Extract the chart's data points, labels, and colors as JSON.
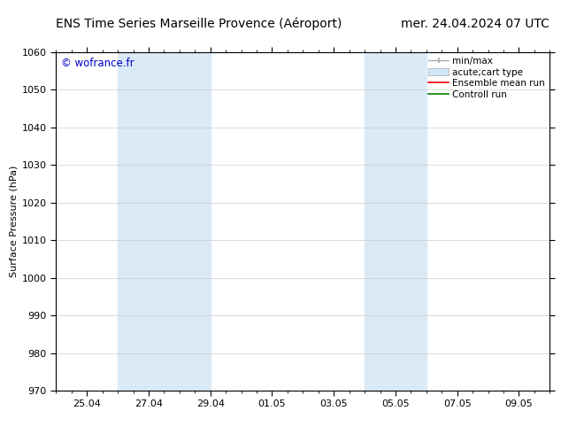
{
  "title_left": "ENS Time Series Marseille Provence (Aéroport)",
  "title_right": "mer. 24.04.2024 07 UTC",
  "ylabel": "Surface Pressure (hPa)",
  "ylim": [
    970,
    1060
  ],
  "yticks": [
    970,
    980,
    990,
    1000,
    1010,
    1020,
    1030,
    1040,
    1050,
    1060
  ],
  "xtick_labels": [
    "25.04",
    "27.04",
    "29.04",
    "01.05",
    "03.05",
    "05.05",
    "07.05",
    "09.05"
  ],
  "xtick_positions": [
    1.0,
    3.0,
    5.0,
    7.0,
    9.0,
    11.0,
    13.0,
    15.0
  ],
  "xlim": [
    0,
    16
  ],
  "watermark": "© wofrance.fr",
  "watermark_color": "#0000cc",
  "background_color": "#ffffff",
  "plot_bg_color": "#ffffff",
  "shaded_bands": [
    {
      "x_start": 2.0,
      "x_end": 5.0,
      "color": "#daeaf7"
    },
    {
      "x_start": 10.0,
      "x_end": 12.0,
      "color": "#daeaf7"
    }
  ],
  "grid_color": "#cccccc",
  "title_fontsize": 10,
  "axis_label_fontsize": 8,
  "tick_fontsize": 8,
  "legend_fontsize": 7.5,
  "watermark_fontsize": 8.5
}
